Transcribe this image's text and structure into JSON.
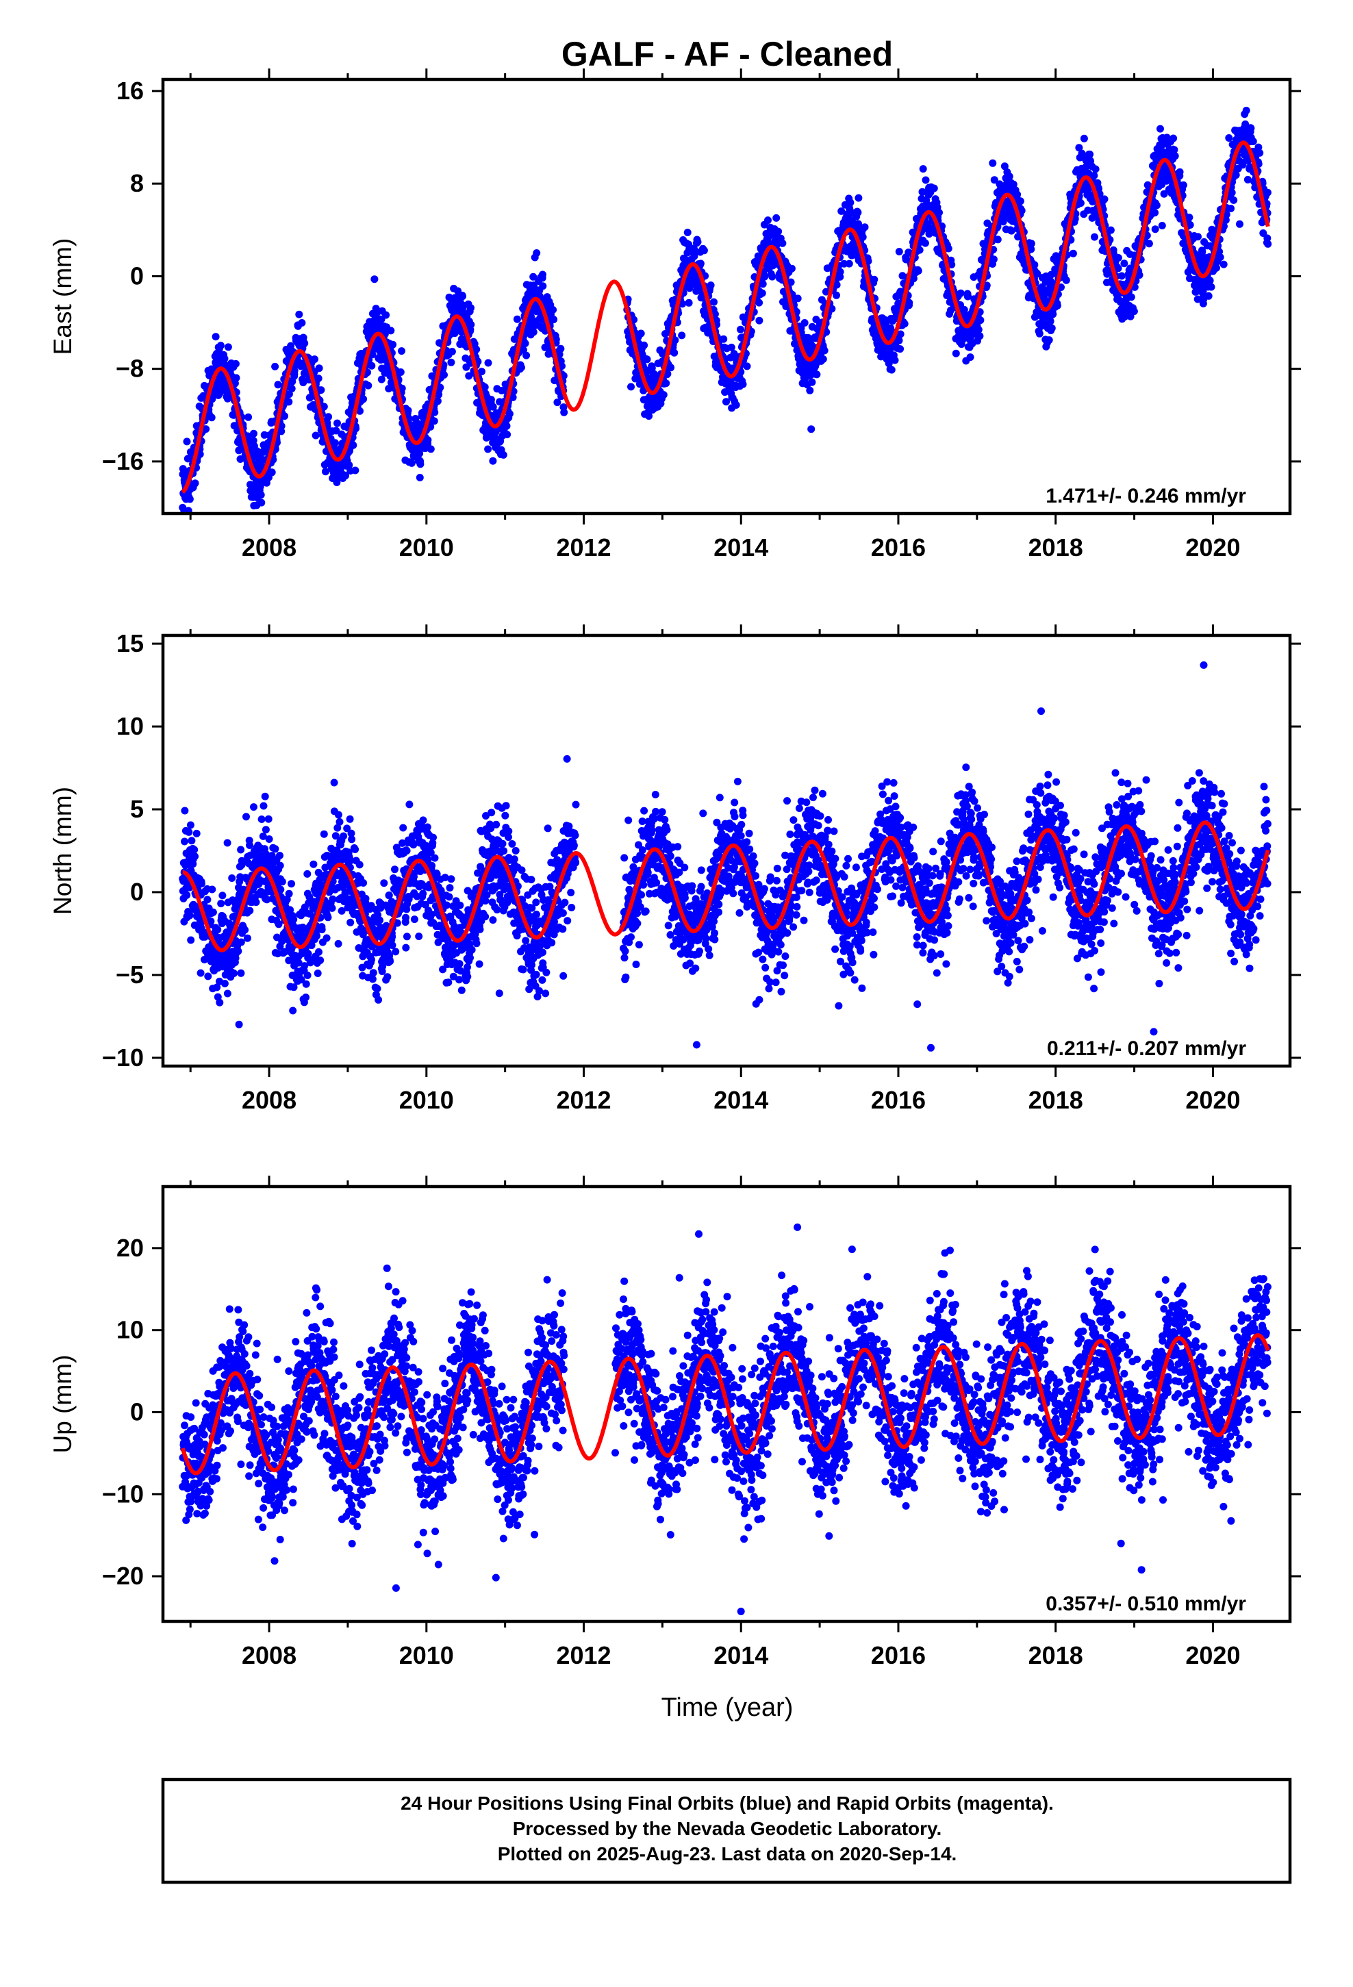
{
  "figure": {
    "title": "GALF  - AF - Cleaned",
    "xlabel": "Time (year)",
    "footer": [
      "24 Hour Positions Using Final Orbits (blue) and Rapid Orbits (magenta).",
      "Processed by the Nevada Geodetic Laboratory.",
      "Plotted on 2025-Aug-23. Last data on 2020-Sep-14."
    ],
    "colors": {
      "data": "#0000ff",
      "model": "#ff0000",
      "frame": "#000000"
    }
  },
  "chart_data": [
    {
      "type": "scatter",
      "panel": "East",
      "ylabel": "East (mm)",
      "rate_label": "1.471+/- 0.246 mm/yr",
      "xlim": [
        2006.65,
        2020.98
      ],
      "ylim": [
        -20.5,
        17
      ],
      "yticks": [
        -16,
        -8,
        0,
        8,
        16
      ],
      "ytick_labels": [
        "−16",
        "−8",
        "0",
        "8",
        "16"
      ],
      "xticks": [
        2008,
        2010,
        2012,
        2014,
        2016,
        2018,
        2020
      ],
      "xtick_labels": [
        "2008",
        "2010",
        "2012",
        "2014",
        "2016",
        "2018",
        "2020"
      ],
      "data_range": [
        2006.9,
        2020.7
      ],
      "gaps": [
        [
          2011.75,
          2012.55
        ]
      ],
      "trend_mm_per_yr": 1.471,
      "model_start_mm": -13.7,
      "annual_amplitude_mm": 5.0,
      "amp_growth_mm_per_yr": 0.03,
      "annual_peak_phase": 0.38,
      "noise_mm": 1.3,
      "series": [
        {
          "name": "Final Orbits",
          "color": "#0000ff",
          "style": "points"
        },
        {
          "name": "Model fit",
          "color": "#ff0000",
          "style": "line"
        }
      ]
    },
    {
      "type": "scatter",
      "panel": "North",
      "ylabel": "North (mm)",
      "rate_label": "0.211+/- 0.207 mm/yr",
      "xlim": [
        2006.65,
        2020.98
      ],
      "ylim": [
        -10.5,
        15.5
      ],
      "yticks": [
        -10,
        -5,
        0,
        5,
        10,
        15
      ],
      "ytick_labels": [
        "−10",
        "−5",
        "0",
        "5",
        "10",
        "15"
      ],
      "xticks": [
        2008,
        2010,
        2012,
        2014,
        2016,
        2018,
        2020
      ],
      "xtick_labels": [
        "2008",
        "2010",
        "2012",
        "2014",
        "2016",
        "2018",
        "2020"
      ],
      "data_range": [
        2006.9,
        2020.7
      ],
      "gaps": [
        [
          2011.9,
          2012.5
        ]
      ],
      "trend_mm_per_yr": 0.211,
      "model_start_mm": -1.2,
      "annual_amplitude_mm": 2.4,
      "amp_growth_mm_per_yr": 0.02,
      "annual_peak_phase": 0.9,
      "noise_mm": 1.5,
      "series": [
        {
          "name": "Final Orbits",
          "color": "#0000ff",
          "style": "points"
        },
        {
          "name": "Model fit",
          "color": "#ff0000",
          "style": "line"
        }
      ]
    },
    {
      "type": "scatter",
      "panel": "Up",
      "ylabel": "Up (mm)",
      "rate_label": "0.357+/- 0.510 mm/yr",
      "xlim": [
        2006.65,
        2020.98
      ],
      "ylim": [
        -25.5,
        27.5
      ],
      "yticks": [
        -20,
        -10,
        0,
        10,
        20
      ],
      "ytick_labels": [
        "−20",
        "−10",
        "0",
        "10",
        "20"
      ],
      "xticks": [
        2008,
        2010,
        2012,
        2014,
        2016,
        2018,
        2020
      ],
      "xtick_labels": [
        "2008",
        "2010",
        "2012",
        "2014",
        "2016",
        "2018",
        "2020"
      ],
      "data_range": [
        2006.9,
        2020.7
      ],
      "gaps": [
        [
          2011.75,
          2012.4
        ]
      ],
      "trend_mm_per_yr": 0.357,
      "model_start_mm": -1.5,
      "annual_amplitude_mm": 6.0,
      "amp_growth_mm_per_yr": 0.0,
      "annual_peak_phase": 0.57,
      "noise_mm": 4.0,
      "series": [
        {
          "name": "Final Orbits",
          "color": "#0000ff",
          "style": "points"
        },
        {
          "name": "Model fit",
          "color": "#ff0000",
          "style": "line"
        }
      ]
    }
  ]
}
